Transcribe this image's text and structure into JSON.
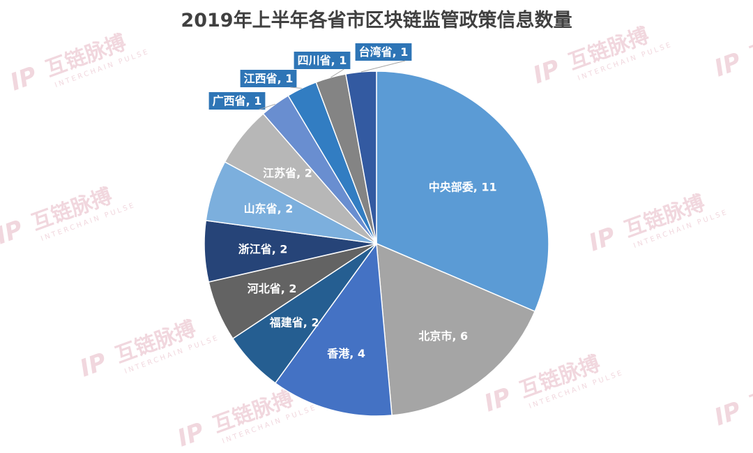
{
  "chart_data": {
    "type": "pie",
    "title": "2019年上半年各省市区块链监管政策信息数量",
    "label_separator": ", ",
    "categories": [
      "中央部委",
      "北京市",
      "香港",
      "福建省",
      "河北省",
      "浙江省",
      "山东省",
      "江苏省",
      "广西省",
      "江西省",
      "四川省",
      "台湾省"
    ],
    "values": [
      11,
      6,
      4,
      2,
      2,
      2,
      2,
      2,
      1,
      1,
      1,
      1
    ],
    "colors": [
      "#5b9bd5",
      "#a5a5a5",
      "#4472c4",
      "#255e91",
      "#636363",
      "#264478",
      "#7cafdd",
      "#b7b7b7",
      "#698ed0",
      "#327dc2",
      "#848484",
      "#335aa1"
    ],
    "label_style": [
      "inside",
      "inside",
      "inside",
      "inside",
      "inside",
      "inside",
      "inside",
      "inside",
      "callout",
      "callout",
      "callout",
      "callout"
    ],
    "start_angle_deg": 0,
    "direction": "clockwise"
  },
  "watermark": {
    "brand": "互链脉搏",
    "sub": "INTERCHAIN PULSE",
    "color": "#e6b8c4"
  }
}
